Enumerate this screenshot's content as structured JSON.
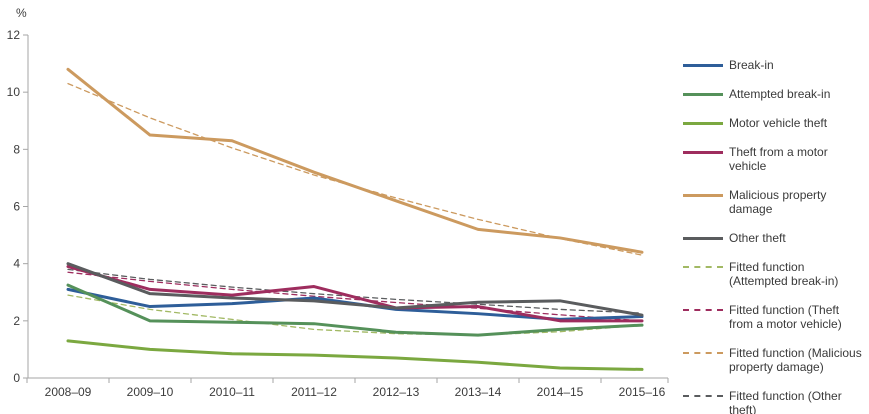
{
  "chart_data": {
    "type": "line",
    "title": "",
    "ylabel": "%",
    "xlabel": "",
    "ylim": [
      0,
      12
    ],
    "yticks": [
      0,
      2,
      4,
      6,
      8,
      10,
      12
    ],
    "grid": false,
    "legend_position": "right",
    "categories": [
      "2008–09",
      "2009–10",
      "2010–11",
      "2011–12",
      "2012–13",
      "2013–14",
      "2014–15",
      "2015–16"
    ],
    "series": [
      {
        "name": "Break-in",
        "color": "#2E5E99",
        "style": "solid",
        "values": [
          3.1,
          2.5,
          2.6,
          2.8,
          2.4,
          2.25,
          2.05,
          2.15
        ]
      },
      {
        "name": "Attempted break-in",
        "color": "#55915A",
        "style": "solid",
        "values": [
          3.25,
          2.0,
          1.95,
          1.9,
          1.6,
          1.5,
          1.7,
          1.85
        ]
      },
      {
        "name": "Motor vehicle theft",
        "color": "#7BA840",
        "style": "solid",
        "values": [
          1.3,
          1.0,
          0.85,
          0.8,
          0.7,
          0.55,
          0.35,
          0.3
        ]
      },
      {
        "name": "Theft from a motor vehicle",
        "color": "#9E2D5E",
        "style": "solid",
        "values": [
          3.9,
          3.1,
          2.9,
          3.2,
          2.45,
          2.5,
          2.0,
          2.0
        ]
      },
      {
        "name": "Malicious property damage",
        "color": "#CC9A5F",
        "style": "solid",
        "values": [
          10.8,
          8.5,
          8.3,
          7.2,
          6.2,
          5.2,
          4.9,
          4.4
        ]
      },
      {
        "name": "Other theft",
        "color": "#5A5C5E",
        "style": "solid",
        "values": [
          4.0,
          2.95,
          2.8,
          2.7,
          2.45,
          2.65,
          2.7,
          2.2
        ]
      },
      {
        "name": "Fitted function (Attempted break-in)",
        "color": "#A2B964",
        "style": "dashed",
        "values": [
          2.9,
          2.4,
          2.05,
          1.7,
          1.55,
          1.5,
          1.62,
          1.85
        ]
      },
      {
        "name": "Fitted function (Theft from a motor vehicle)",
        "color": "#9E2D5E",
        "style": "dashed",
        "values": [
          3.7,
          3.38,
          3.1,
          2.86,
          2.64,
          2.44,
          2.21,
          2.0
        ]
      },
      {
        "name": "Fitted function (Malicious property damage)",
        "color": "#CC9A5F",
        "style": "dashed",
        "values": [
          10.3,
          9.1,
          8.05,
          7.1,
          6.3,
          5.55,
          4.88,
          4.3
        ]
      },
      {
        "name": "Fitted function (Other theft)",
        "color": "#5A5C5E",
        "style": "dashed",
        "values": [
          3.8,
          3.45,
          3.18,
          2.95,
          2.75,
          2.58,
          2.4,
          2.27
        ]
      }
    ],
    "axis_color": "#A6A6A6",
    "text_color": "#3C3C3C"
  }
}
